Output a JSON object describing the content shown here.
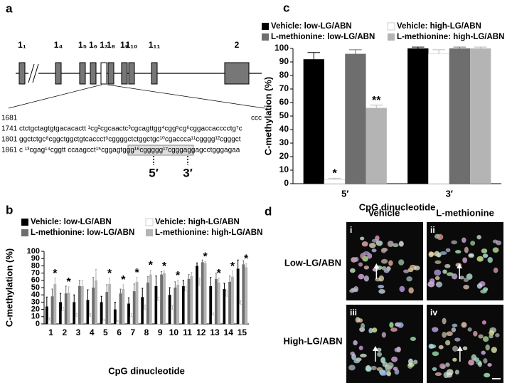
{
  "panel_a": {
    "label": "a",
    "exons": [
      "1₁",
      "1₄",
      "1₅",
      "1₆",
      "1₇",
      "1₈",
      "1₉",
      "1₁₀",
      "1₁₁",
      "2"
    ],
    "sequence": [
      "1681",
      "ccc",
      "1741 ctctgctagtgtgacacactt ¹cg²cgcaactc³cgcagttgg⁴cgg⁵cg⁶cggaccacccctg⁷c",
      "1801 ggctctgc⁸cggctggctgtcaccct⁹cggggctctggctgc¹⁰cgaccca¹¹cgggg¹²cgggct",
      "1861 c ¹³cgag¹⁴cggtt ccaagcct¹⁵cggagtggg¹⁶cggggg¹⁷cgggaggagcctgggagaa"
    ],
    "primer_5": "5′",
    "primer_3": "3′"
  },
  "chart_data": [
    {
      "type": "bar",
      "panel_label": "c",
      "categories": [
        "5′",
        "3′"
      ],
      "xlabel": "CpG dinucleotide",
      "ylabel": "C-methylation (%)",
      "ylim": [
        0,
        100
      ],
      "yticks": [
        0,
        10,
        20,
        30,
        40,
        50,
        60,
        70,
        80,
        90,
        100
      ],
      "series": [
        {
          "name": "Vehicle: low-LG/ABN",
          "color": "#000000",
          "values": [
            92,
            100
          ],
          "errors": [
            5,
            1
          ],
          "significance": [
            null,
            null
          ]
        },
        {
          "name": "Vehicle: high-LG/ABN",
          "color": "#ffffff",
          "values": [
            3,
            96
          ],
          "errors": [
            1,
            3
          ],
          "significance": [
            "*",
            null
          ]
        },
        {
          "name": "L-methionine: low-LG/ABN",
          "color": "#6e6e6e",
          "values": [
            96,
            100
          ],
          "errors": [
            3,
            1
          ],
          "significance": [
            null,
            null
          ]
        },
        {
          "name": "L-methionine: high-LG/ABN",
          "color": "#b4b4b4",
          "values": [
            56,
            100
          ],
          "errors": [
            2,
            1
          ],
          "significance": [
            "**",
            null
          ]
        }
      ]
    },
    {
      "type": "bar",
      "panel_label": "b",
      "categories": [
        "1",
        "2",
        "3",
        "4",
        "5",
        "6",
        "7",
        "8",
        "9",
        "10",
        "11",
        "12",
        "13",
        "14",
        "15"
      ],
      "xlabel": "CpG dinucleotide",
      "ylabel": "C-methylation (%)",
      "ylim": [
        0,
        100
      ],
      "yticks": [
        0,
        10,
        20,
        30,
        40,
        50,
        60,
        70,
        80,
        90,
        100
      ],
      "series": [
        {
          "name": "Vehicle: low-LG/ABN",
          "color": "#000000",
          "values": [
            24,
            30,
            30,
            33,
            30,
            20,
            28,
            37,
            52,
            40,
            52,
            80,
            52,
            48,
            76
          ],
          "errors": [
            13,
            12,
            10,
            14,
            8,
            10,
            8,
            12,
            14,
            10,
            8,
            4,
            12,
            8,
            12
          ],
          "significance": [
            null,
            null,
            null,
            null,
            null,
            null,
            null,
            null,
            null,
            null,
            null,
            null,
            null,
            null,
            null
          ]
        },
        {
          "name": "Vehicle: high-LG/ABN",
          "color": "#ffffff",
          "values": [
            5,
            18,
            10,
            10,
            4,
            3,
            10,
            20,
            32,
            20,
            45,
            53,
            12,
            38,
            27
          ],
          "errors": [
            3,
            5,
            4,
            4,
            2,
            2,
            4,
            6,
            5,
            5,
            6,
            10,
            3,
            8,
            5
          ],
          "significance": [
            null,
            null,
            null,
            null,
            null,
            null,
            null,
            null,
            null,
            null,
            null,
            null,
            null,
            null,
            null
          ]
        },
        {
          "name": "L-methionine: low-LG/ABN",
          "color": "#6e6e6e",
          "values": [
            38,
            42,
            52,
            50,
            44,
            42,
            45,
            57,
            68,
            50,
            62,
            85,
            62,
            58,
            82
          ],
          "errors": [
            10,
            10,
            8,
            14,
            10,
            6,
            10,
            8,
            4,
            8,
            6,
            3,
            8,
            8,
            5
          ],
          "significance": [
            null,
            null,
            null,
            null,
            null,
            null,
            null,
            null,
            null,
            null,
            null,
            null,
            null,
            null,
            null
          ]
        },
        {
          "name": "L-methionine: high-LG/ABN",
          "color": "#b4b4b4",
          "values": [
            55,
            43,
            52,
            60,
            55,
            48,
            58,
            68,
            70,
            54,
            66,
            84,
            57,
            65,
            78
          ],
          "errors": [
            8,
            8,
            8,
            15,
            8,
            6,
            6,
            6,
            3,
            6,
            5,
            2,
            6,
            8,
            5
          ],
          "significance": [
            "*",
            "*",
            null,
            null,
            "*",
            "*",
            "*",
            "*",
            "*",
            "*",
            null,
            "*",
            "*",
            "*",
            "*"
          ]
        }
      ]
    }
  ],
  "panel_d": {
    "label": "d",
    "columns": [
      "Vehicle",
      "L-methionine"
    ],
    "rows": [
      "Low-LG/ABN",
      "High-LG/ABN"
    ],
    "images": [
      "i",
      "ii",
      "iii",
      "iv"
    ]
  }
}
